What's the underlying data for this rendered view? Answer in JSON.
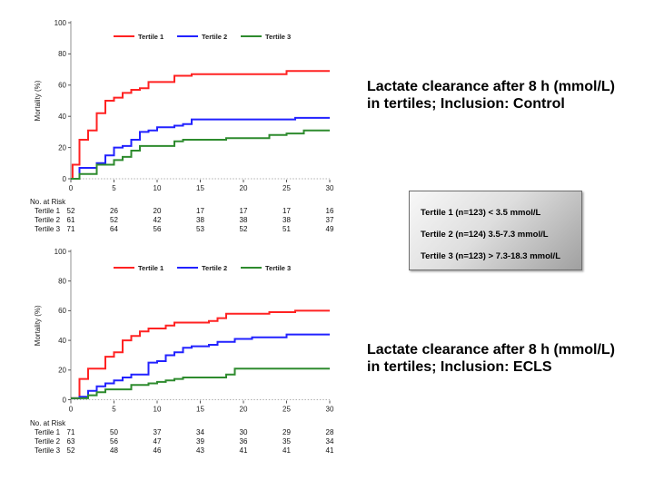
{
  "slide": {
    "background": "#FFFFFF"
  },
  "colors": {
    "tertile1": "#FF2222",
    "tertile2": "#2222FF",
    "tertile3": "#2E8B2E",
    "y_axis": "#909090",
    "x_axis_dashed": "#B0B0B0",
    "tick_mark": "#555555",
    "tick_text": "#222222",
    "legend_text": "#1A1A1A"
  },
  "chart_data": [
    {
      "type": "line",
      "subtype": "step",
      "caption_lines": [
        "Lactate clearance after 8 h (mmol/L)",
        "in tertiles; Inclusion: Control"
      ],
      "xlabel": "",
      "ylabel": "Mortality (%)",
      "xlim": [
        0,
        30
      ],
      "ylim": [
        0,
        100
      ],
      "xticks": [
        0,
        5,
        10,
        15,
        20,
        25,
        30
      ],
      "yticks": [
        0,
        20,
        40,
        60,
        80,
        100
      ],
      "grid": false,
      "legend_position": "top-center",
      "series": [
        {
          "name": "Tertile 1",
          "color": "#FF2222",
          "steps": [
            [
              0,
              0
            ],
            [
              0.2,
              9
            ],
            [
              1,
              25
            ],
            [
              2,
              31
            ],
            [
              3,
              42
            ],
            [
              4,
              50
            ],
            [
              5,
              52
            ],
            [
              6,
              55
            ],
            [
              7,
              57
            ],
            [
              8,
              58
            ],
            [
              9,
              62
            ],
            [
              12,
              66
            ],
            [
              14,
              67
            ],
            [
              25,
              69
            ],
            [
              30,
              69
            ]
          ]
        },
        {
          "name": "Tertile 2",
          "color": "#2222FF",
          "steps": [
            [
              0,
              0
            ],
            [
              1,
              7
            ],
            [
              3,
              10
            ],
            [
              4,
              15
            ],
            [
              5,
              20
            ],
            [
              6,
              21
            ],
            [
              7,
              25
            ],
            [
              8,
              30
            ],
            [
              9,
              31
            ],
            [
              10,
              33
            ],
            [
              12,
              34
            ],
            [
              13,
              35
            ],
            [
              14,
              38
            ],
            [
              26,
              39
            ],
            [
              30,
              39
            ]
          ]
        },
        {
          "name": "Tertile 3",
          "color": "#2E8B2E",
          "steps": [
            [
              0,
              0
            ],
            [
              1,
              3
            ],
            [
              3,
              9
            ],
            [
              5,
              12
            ],
            [
              6,
              14
            ],
            [
              7,
              18
            ],
            [
              8,
              21
            ],
            [
              12,
              24
            ],
            [
              13,
              25
            ],
            [
              18,
              26
            ],
            [
              23,
              28
            ],
            [
              25,
              29
            ],
            [
              27,
              31
            ],
            [
              30,
              31
            ]
          ]
        }
      ],
      "risk_table": {
        "title": "No. at Risk",
        "columns": [
          0,
          5,
          10,
          15,
          20,
          25,
          30
        ],
        "row_labels": [
          "Tertile 1",
          "Tertile 2",
          "Tertile 3"
        ],
        "values": [
          [
            52,
            26,
            20,
            17,
            17,
            17,
            16
          ],
          [
            61,
            52,
            42,
            38,
            38,
            38,
            37
          ],
          [
            71,
            64,
            56,
            53,
            52,
            51,
            49
          ]
        ]
      }
    },
    {
      "type": "line",
      "subtype": "step",
      "caption_lines": [
        "Lactate clearance after 8 h (mmol/L)",
        "in tertiles; Inclusion: ECLS"
      ],
      "xlabel": "",
      "ylabel": "Mortality (%)",
      "xlim": [
        0,
        30
      ],
      "ylim": [
        0,
        100
      ],
      "xticks": [
        0,
        5,
        10,
        15,
        20,
        25,
        30
      ],
      "yticks": [
        0,
        20,
        40,
        60,
        80,
        100
      ],
      "grid": false,
      "legend_position": "top-center",
      "series": [
        {
          "name": "Tertile 1",
          "color": "#FF2222",
          "steps": [
            [
              0,
              1
            ],
            [
              1,
              14
            ],
            [
              2,
              21
            ],
            [
              4,
              29
            ],
            [
              5,
              32
            ],
            [
              6,
              40
            ],
            [
              7,
              43
            ],
            [
              8,
              46
            ],
            [
              9,
              48
            ],
            [
              11,
              50
            ],
            [
              12,
              52
            ],
            [
              16,
              53
            ],
            [
              17,
              55
            ],
            [
              18,
              58
            ],
            [
              23,
              59
            ],
            [
              26,
              60
            ],
            [
              30,
              60
            ]
          ]
        },
        {
          "name": "Tertile 2",
          "color": "#2222FF",
          "steps": [
            [
              0,
              1
            ],
            [
              1,
              2
            ],
            [
              2,
              6
            ],
            [
              3,
              9
            ],
            [
              4,
              11
            ],
            [
              5,
              13
            ],
            [
              6,
              15
            ],
            [
              7,
              17
            ],
            [
              9,
              25
            ],
            [
              10,
              26
            ],
            [
              11,
              30
            ],
            [
              12,
              32
            ],
            [
              13,
              35
            ],
            [
              14,
              36
            ],
            [
              16,
              37
            ],
            [
              17,
              39
            ],
            [
              19,
              41
            ],
            [
              21,
              42
            ],
            [
              25,
              44
            ],
            [
              30,
              44
            ]
          ]
        },
        {
          "name": "Tertile 3",
          "color": "#2E8B2E",
          "steps": [
            [
              0,
              1
            ],
            [
              2,
              3
            ],
            [
              3,
              5
            ],
            [
              4,
              7
            ],
            [
              7,
              10
            ],
            [
              9,
              11
            ],
            [
              10,
              12
            ],
            [
              11,
              13
            ],
            [
              12,
              14
            ],
            [
              13,
              15
            ],
            [
              18,
              17
            ],
            [
              19,
              21
            ],
            [
              30,
              21
            ]
          ]
        }
      ],
      "risk_table": {
        "title": "No. at Risk",
        "columns": [
          0,
          5,
          10,
          15,
          20,
          25,
          30
        ],
        "row_labels": [
          "Tertile 1",
          "Tertile 2",
          "Tertile 3"
        ],
        "values": [
          [
            71,
            50,
            37,
            34,
            30,
            29,
            28
          ],
          [
            63,
            56,
            47,
            39,
            36,
            35,
            34
          ],
          [
            52,
            48,
            46,
            43,
            41,
            41,
            41
          ]
        ]
      }
    }
  ],
  "info_box": {
    "lines": [
      "Tertile 1 (n=123) < 3.5 mmol/L",
      "Tertile 2 (n=124) 3.5-7.3 mmol/L",
      "Tertile 3 (n=123) > 7.3-18.3 mmol/L"
    ]
  }
}
